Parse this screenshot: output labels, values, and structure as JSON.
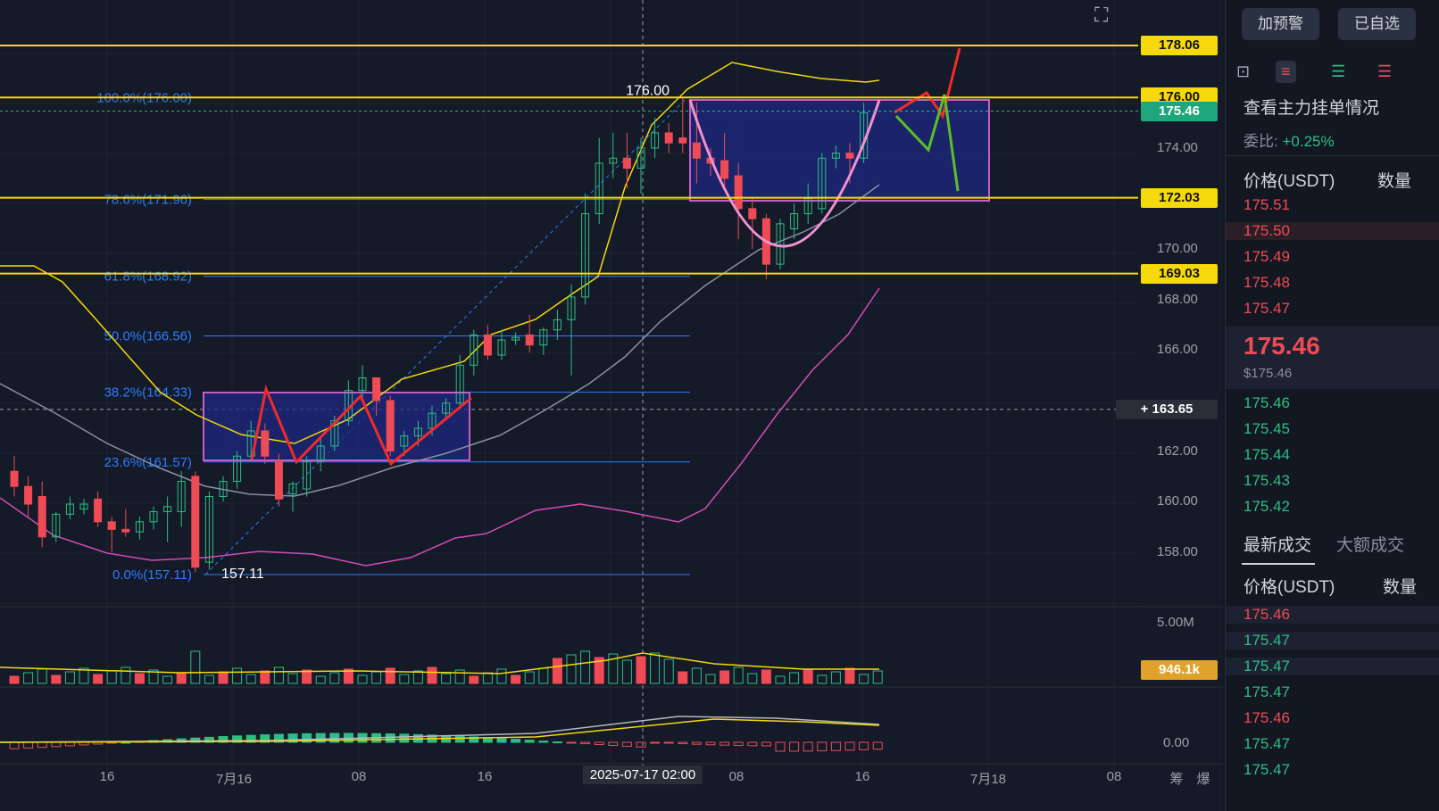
{
  "chart_data": {
    "type": "candlestick",
    "symbol_pair_quote": "USDT",
    "price_axis": {
      "ticks": [
        "178.06",
        "176.00",
        "175.46",
        "174.00",
        "172.03",
        "170.00",
        "169.03",
        "168.00",
        "166.00",
        "163.65",
        "162.00",
        "160.00",
        "158.00"
      ],
      "range": [
        156.0,
        179.6
      ]
    },
    "time_axis": {
      "ticks": [
        "16",
        "7月16",
        "08",
        "16",
        "2025-07-17 02:00",
        "08",
        "16",
        "7月18",
        "08"
      ]
    },
    "horizontal_levels": [
      {
        "label": "178.06",
        "value": 178.06,
        "color": "#f5d90a"
      },
      {
        "label": "176.00",
        "value": 176.0,
        "color": "#f5d90a"
      },
      {
        "label": "172.03",
        "value": 172.03,
        "color": "#f5d90a"
      },
      {
        "label": "169.03",
        "value": 169.03,
        "color": "#f5d90a"
      }
    ],
    "current_price": {
      "label": "175.46",
      "value": 175.46,
      "color": "#1fa67a"
    },
    "crosshair_price": {
      "label": "163.65",
      "value": 163.65
    },
    "fibonacci": [
      {
        "label": "100.0%(176.00)",
        "value": 176.0
      },
      {
        "label": "78.6%(171.96)",
        "value": 171.96
      },
      {
        "label": "61.8%(168.92)",
        "value": 168.92
      },
      {
        "label": "50.0%(166.56)",
        "value": 166.56
      },
      {
        "label": "38.2%(164.33)",
        "value": 164.33
      },
      {
        "label": "23.6%(161.57)",
        "value": 161.57
      },
      {
        "label": "0.0%(157.11)",
        "value": 157.11
      }
    ],
    "annotations": [
      {
        "text": "176.00",
        "value": 176.0
      },
      {
        "text": "157.11",
        "value": 157.11
      }
    ],
    "candles": [
      {
        "o": 161.2,
        "h": 161.8,
        "c": 160.6,
        "l": 160.2
      },
      {
        "o": 160.6,
        "h": 161.0,
        "c": 159.9,
        "l": 159.4
      },
      {
        "o": 160.2,
        "h": 160.8,
        "c": 158.6,
        "l": 158.2
      },
      {
        "o": 158.6,
        "h": 159.6,
        "c": 159.5,
        "l": 158.4
      },
      {
        "o": 159.5,
        "h": 160.2,
        "c": 159.9,
        "l": 159.3
      },
      {
        "o": 159.7,
        "h": 160.1,
        "c": 159.9,
        "l": 159.5
      },
      {
        "o": 160.1,
        "h": 160.4,
        "c": 159.2,
        "l": 159.0
      },
      {
        "o": 159.2,
        "h": 159.4,
        "c": 158.9,
        "l": 158.0
      },
      {
        "o": 158.9,
        "h": 159.7,
        "c": 158.8,
        "l": 158.6
      },
      {
        "o": 158.8,
        "h": 159.4,
        "c": 159.2,
        "l": 158.5
      },
      {
        "o": 159.2,
        "h": 159.8,
        "c": 159.6,
        "l": 158.9
      },
      {
        "o": 159.6,
        "h": 160.2,
        "c": 159.8,
        "l": 158.4
      },
      {
        "o": 159.6,
        "h": 161.2,
        "c": 160.8,
        "l": 159.0
      },
      {
        "o": 161.0,
        "h": 161.2,
        "c": 157.4,
        "l": 157.2
      },
      {
        "o": 157.6,
        "h": 160.4,
        "c": 160.2,
        "l": 157.3
      },
      {
        "o": 160.2,
        "h": 161.0,
        "c": 160.8,
        "l": 160.0
      },
      {
        "o": 160.8,
        "h": 162.0,
        "c": 161.8,
        "l": 160.5
      },
      {
        "o": 161.8,
        "h": 163.2,
        "c": 162.8,
        "l": 161.6
      },
      {
        "o": 162.8,
        "h": 163.1,
        "c": 161.8,
        "l": 161.5
      },
      {
        "o": 161.6,
        "h": 161.9,
        "c": 160.1,
        "l": 159.8
      },
      {
        "o": 160.3,
        "h": 160.8,
        "c": 160.7,
        "l": 159.6
      },
      {
        "o": 160.5,
        "h": 161.8,
        "c": 161.6,
        "l": 160.2
      },
      {
        "o": 161.6,
        "h": 162.6,
        "c": 162.2,
        "l": 161.2
      },
      {
        "o": 162.2,
        "h": 163.4,
        "c": 163.2,
        "l": 162.0
      },
      {
        "o": 163.2,
        "h": 164.8,
        "c": 164.4,
        "l": 163.0
      },
      {
        "o": 164.4,
        "h": 165.4,
        "c": 164.9,
        "l": 163.9
      },
      {
        "o": 164.9,
        "h": 164.8,
        "c": 164.0,
        "l": 163.4
      },
      {
        "o": 164.0,
        "h": 164.2,
        "c": 162.0,
        "l": 161.8
      },
      {
        "o": 162.2,
        "h": 162.8,
        "c": 162.6,
        "l": 161.8
      },
      {
        "o": 162.6,
        "h": 163.2,
        "c": 162.9,
        "l": 162.2
      },
      {
        "o": 162.9,
        "h": 163.8,
        "c": 163.5,
        "l": 162.6
      },
      {
        "o": 163.5,
        "h": 164.1,
        "c": 163.9,
        "l": 163.2
      },
      {
        "o": 163.9,
        "h": 165.8,
        "c": 165.4,
        "l": 163.8
      },
      {
        "o": 165.4,
        "h": 166.8,
        "c": 166.6,
        "l": 165.0
      },
      {
        "o": 166.6,
        "h": 167.0,
        "c": 165.8,
        "l": 165.6
      },
      {
        "o": 165.8,
        "h": 166.8,
        "c": 166.4,
        "l": 165.6
      },
      {
        "o": 166.4,
        "h": 166.7,
        "c": 166.5,
        "l": 166.2
      },
      {
        "o": 166.6,
        "h": 167.4,
        "c": 166.2,
        "l": 165.9
      },
      {
        "o": 166.2,
        "h": 166.9,
        "c": 166.8,
        "l": 165.8
      },
      {
        "o": 166.8,
        "h": 167.6,
        "c": 167.2,
        "l": 166.4
      },
      {
        "o": 167.2,
        "h": 168.6,
        "c": 168.1,
        "l": 165.0
      },
      {
        "o": 168.1,
        "h": 172.2,
        "c": 171.4,
        "l": 167.8
      },
      {
        "o": 171.4,
        "h": 174.4,
        "c": 173.4,
        "l": 171.0
      },
      {
        "o": 173.4,
        "h": 174.6,
        "c": 173.6,
        "l": 172.8
      },
      {
        "o": 173.6,
        "h": 174.6,
        "c": 173.2,
        "l": 172.4
      },
      {
        "o": 173.2,
        "h": 174.4,
        "c": 174.0,
        "l": 172.2
      },
      {
        "o": 174.0,
        "h": 175.2,
        "c": 174.6,
        "l": 173.6
      },
      {
        "o": 174.6,
        "h": 175.0,
        "c": 174.2,
        "l": 173.8
      },
      {
        "o": 174.4,
        "h": 176.0,
        "c": 174.2,
        "l": 173.8
      },
      {
        "o": 174.2,
        "h": 175.8,
        "c": 173.6,
        "l": 172.6
      },
      {
        "o": 173.6,
        "h": 174.0,
        "c": 173.4,
        "l": 172.9
      },
      {
        "o": 173.5,
        "h": 174.6,
        "c": 172.8,
        "l": 172.4
      },
      {
        "o": 172.9,
        "h": 173.4,
        "c": 171.6,
        "l": 170.4
      },
      {
        "o": 171.6,
        "h": 172.0,
        "c": 171.2,
        "l": 170.0
      },
      {
        "o": 171.2,
        "h": 171.4,
        "c": 169.4,
        "l": 168.8
      },
      {
        "o": 169.4,
        "h": 171.2,
        "c": 171.0,
        "l": 169.2
      },
      {
        "o": 170.8,
        "h": 171.8,
        "c": 171.4,
        "l": 170.4
      },
      {
        "o": 171.4,
        "h": 172.6,
        "c": 172.0,
        "l": 171.0
      },
      {
        "o": 171.6,
        "h": 173.8,
        "c": 173.6,
        "l": 171.4
      },
      {
        "o": 173.6,
        "h": 174.1,
        "c": 173.8,
        "l": 173.2
      },
      {
        "o": 173.8,
        "h": 174.2,
        "c": 173.6,
        "l": 172.6
      },
      {
        "o": 173.6,
        "h": 175.8,
        "c": 175.4,
        "l": 173.4
      }
    ],
    "volume_axis": {
      "ticks": [
        "5.00M"
      ],
      "last_label": "946.1k"
    },
    "macd_axis": {
      "ticks": [
        "0.00"
      ]
    },
    "bottom_right_labels": [
      "筹",
      "爆"
    ]
  },
  "sidebar": {
    "buttons": [
      "加预警",
      "已自选"
    ],
    "orderbook_title": "查看主力挂单情况",
    "ratio_label": "委比:",
    "ratio_value": "+0.25%",
    "price_header": "价格(USDT)",
    "qty_header": "数量",
    "asks": [
      "175.51",
      "175.50",
      "175.49",
      "175.48",
      "175.47"
    ],
    "last_price": "175.46",
    "last_price_usd": "$175.46",
    "bids": [
      "175.46",
      "175.45",
      "175.44",
      "175.43",
      "175.42"
    ],
    "trade_tabs": [
      "最新成交",
      "大额成交"
    ],
    "trades_price_header": "价格(USDT)",
    "trades_qty_header": "数量",
    "trades": [
      {
        "price": "175.46",
        "side": "sell"
      },
      {
        "price": "175.47",
        "side": "buy"
      },
      {
        "price": "175.47",
        "side": "buy"
      },
      {
        "price": "175.47",
        "side": "buy"
      },
      {
        "price": "175.46",
        "side": "sell"
      },
      {
        "price": "175.47",
        "side": "buy"
      },
      {
        "price": "175.47",
        "side": "buy"
      }
    ]
  }
}
